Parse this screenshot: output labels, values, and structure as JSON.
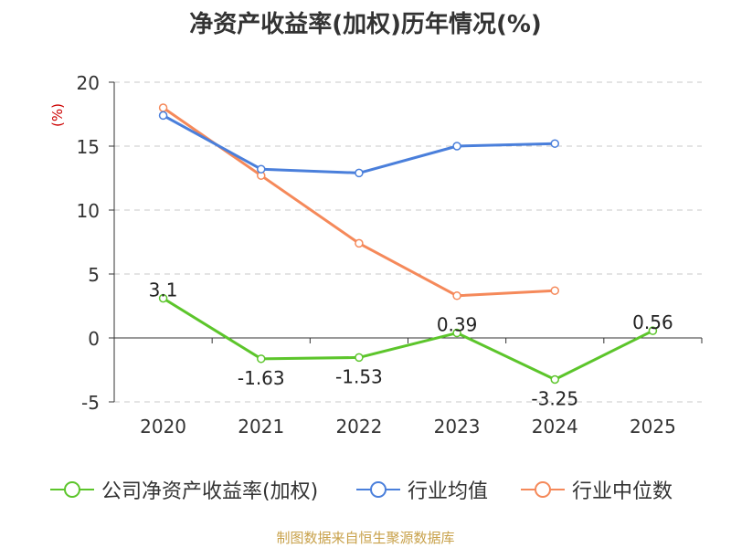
{
  "chart_data": {
    "type": "line",
    "title": "净资产收益率(加权)历年情况(%)",
    "ylabel": "(%)",
    "xlabel": "",
    "categories": [
      "2020",
      "2021",
      "2022",
      "2023",
      "2024",
      "2025"
    ],
    "ylim": [
      -5,
      20
    ],
    "yticks": [
      -5,
      0,
      5,
      10,
      15,
      20
    ],
    "grid": true,
    "legend_position": "bottom",
    "series": [
      {
        "name": "公司净资产收益率(加权)",
        "color": "#5cc52b",
        "values": [
          3.1,
          -1.63,
          -1.53,
          0.39,
          -3.25,
          0.56
        ],
        "labels": [
          "3.1",
          "-1.63",
          "-1.53",
          "0.39",
          "-3.25",
          "0.56"
        ]
      },
      {
        "name": "行业均值",
        "color": "#4a7fdb",
        "values": [
          17.4,
          13.2,
          12.9,
          15.0,
          15.2,
          null
        ]
      },
      {
        "name": "行业中位数",
        "color": "#f5895a",
        "values": [
          18.0,
          12.7,
          7.4,
          3.3,
          3.7,
          null
        ]
      }
    ]
  },
  "source_note": "制图数据来自恒生聚源数据库"
}
